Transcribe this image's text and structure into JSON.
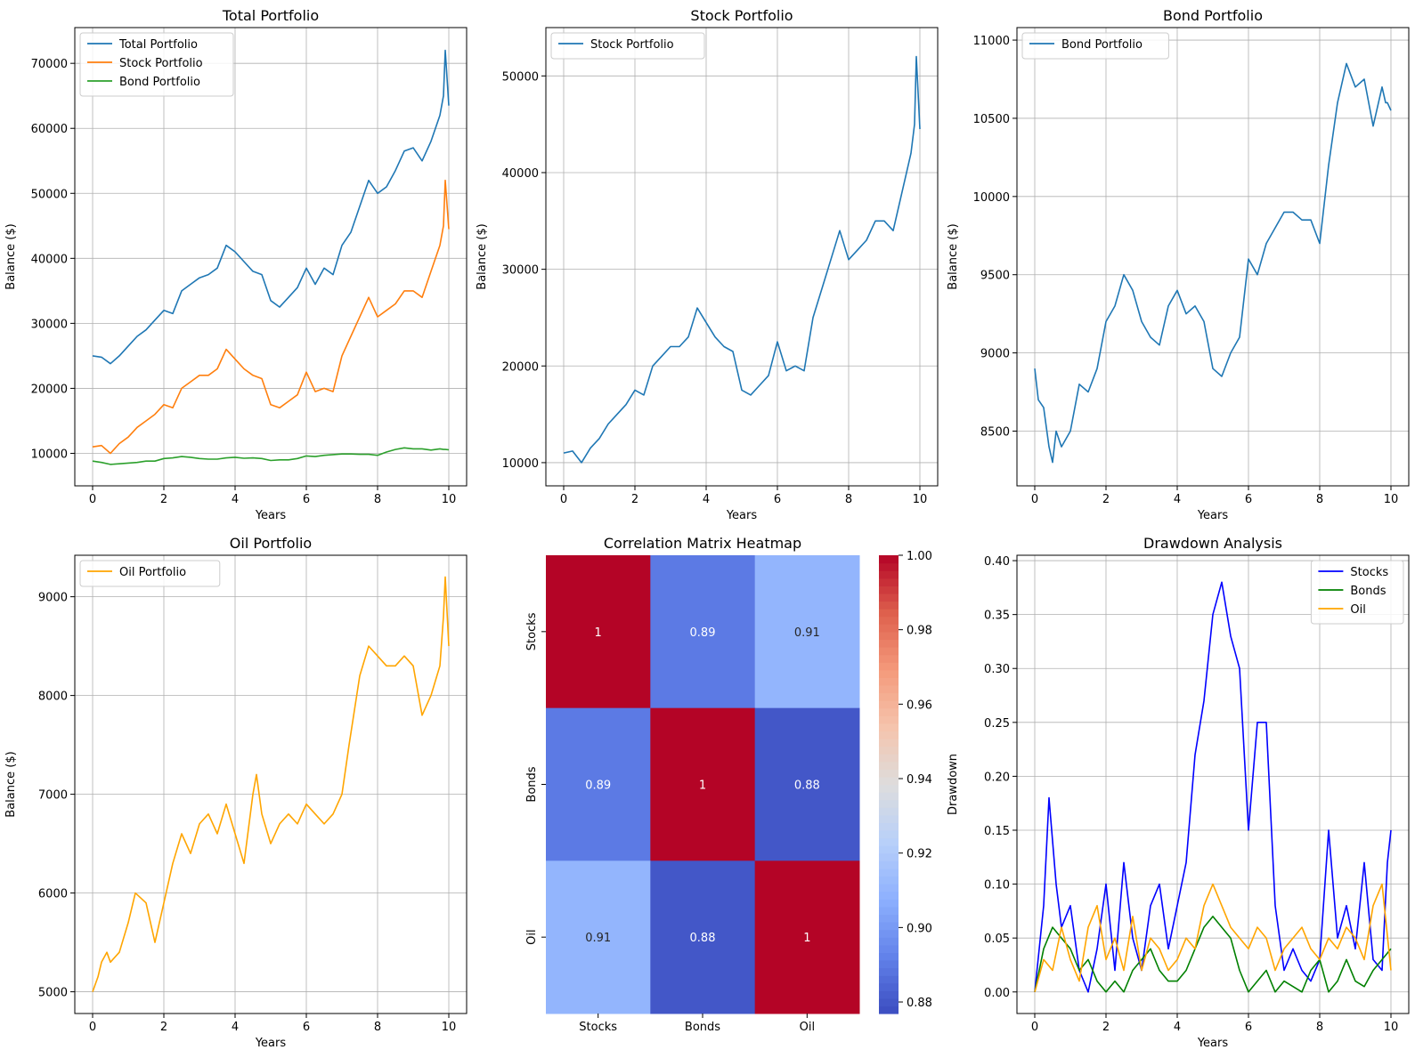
{
  "chart_data": [
    {
      "type": "line",
      "title": "Total Portfolio",
      "xlabel": "Years",
      "ylabel": "Balance ($)",
      "xlim": [
        -0.5,
        10.5
      ],
      "ylim": [
        5000,
        75500
      ],
      "xticks": [
        0,
        2,
        4,
        6,
        8,
        10
      ],
      "yticks": [
        10000,
        20000,
        30000,
        40000,
        50000,
        60000,
        70000
      ],
      "grid": true,
      "legend_position": "upper left",
      "series": [
        {
          "name": "Total Portfolio",
          "color": "#1f77b4",
          "x": [
            0,
            0.25,
            0.5,
            0.75,
            1,
            1.25,
            1.5,
            1.75,
            2,
            2.25,
            2.5,
            2.75,
            3,
            3.25,
            3.5,
            3.75,
            4,
            4.25,
            4.5,
            4.75,
            5,
            5.25,
            5.5,
            5.75,
            6,
            6.25,
            6.5,
            6.75,
            7,
            7.25,
            7.5,
            7.75,
            8,
            8.25,
            8.5,
            8.75,
            9,
            9.25,
            9.5,
            9.75,
            9.85,
            9.9,
            10
          ],
          "y": [
            25000,
            24800,
            23800,
            25000,
            26500,
            28000,
            29000,
            30500,
            32000,
            31500,
            35000,
            36000,
            37000,
            37500,
            38500,
            42000,
            41000,
            39500,
            38000,
            37500,
            33500,
            32500,
            34000,
            35500,
            38500,
            36000,
            38500,
            37500,
            42000,
            44000,
            48000,
            52000,
            50000,
            51000,
            53500,
            56500,
            57000,
            55000,
            58000,
            62000,
            65000,
            72000,
            63500
          ]
        },
        {
          "name": "Stock Portfolio",
          "color": "#ff7f0e",
          "x": [
            0,
            0.25,
            0.5,
            0.75,
            1,
            1.25,
            1.5,
            1.75,
            2,
            2.25,
            2.5,
            2.75,
            3,
            3.25,
            3.5,
            3.75,
            4,
            4.25,
            4.5,
            4.75,
            5,
            5.25,
            5.5,
            5.75,
            6,
            6.25,
            6.5,
            6.75,
            7,
            7.25,
            7.5,
            7.75,
            8,
            8.25,
            8.5,
            8.75,
            9,
            9.25,
            9.5,
            9.75,
            9.85,
            9.9,
            10
          ],
          "y": [
            11000,
            11200,
            10000,
            11500,
            12500,
            14000,
            15000,
            16000,
            17500,
            17000,
            20000,
            21000,
            22000,
            22000,
            23000,
            26000,
            24500,
            23000,
            22000,
            21500,
            17500,
            17000,
            18000,
            19000,
            22500,
            19500,
            20000,
            19500,
            25000,
            28000,
            31000,
            34000,
            31000,
            32000,
            33000,
            35000,
            35000,
            34000,
            38000,
            42000,
            45000,
            52000,
            44500
          ]
        },
        {
          "name": "Bond Portfolio",
          "color": "#2ca02c",
          "x": [
            0,
            0.25,
            0.5,
            0.75,
            1,
            1.25,
            1.5,
            1.75,
            2,
            2.25,
            2.5,
            2.75,
            3,
            3.25,
            3.5,
            3.75,
            4,
            4.25,
            4.5,
            4.75,
            5,
            5.25,
            5.5,
            5.75,
            6,
            6.25,
            6.5,
            6.75,
            7,
            7.25,
            7.5,
            7.75,
            8,
            8.25,
            8.5,
            8.75,
            9,
            9.25,
            9.5,
            9.75,
            9.85,
            9.9,
            10
          ],
          "y": [
            8800,
            8600,
            8300,
            8400,
            8500,
            8600,
            8800,
            8800,
            9200,
            9300,
            9500,
            9400,
            9200,
            9100,
            9100,
            9300,
            9400,
            9250,
            9300,
            9200,
            8900,
            9000,
            9000,
            9200,
            9600,
            9500,
            9700,
            9800,
            9900,
            9900,
            9850,
            9850,
            9700,
            10200,
            10600,
            10850,
            10700,
            10700,
            10500,
            10700,
            10600,
            10600,
            10550
          ]
        }
      ]
    },
    {
      "type": "line",
      "title": "Stock Portfolio",
      "xlabel": "Years",
      "ylabel": "Balance ($)",
      "xlim": [
        -0.5,
        10.5
      ],
      "ylim": [
        7600,
        55000
      ],
      "xticks": [
        0,
        2,
        4,
        6,
        8,
        10
      ],
      "yticks": [
        10000,
        20000,
        30000,
        40000,
        50000
      ],
      "grid": true,
      "legend_position": "upper left",
      "series": [
        {
          "name": "Stock Portfolio",
          "color": "#1f77b4",
          "x": [
            0,
            0.25,
            0.5,
            0.75,
            1,
            1.25,
            1.5,
            1.75,
            2,
            2.25,
            2.5,
            2.75,
            3,
            3.25,
            3.5,
            3.75,
            4,
            4.25,
            4.5,
            4.75,
            5,
            5.25,
            5.5,
            5.75,
            6,
            6.25,
            6.5,
            6.75,
            7,
            7.25,
            7.5,
            7.75,
            8,
            8.25,
            8.5,
            8.75,
            9,
            9.25,
            9.5,
            9.75,
            9.85,
            9.9,
            10
          ],
          "y": [
            11000,
            11200,
            10000,
            11500,
            12500,
            14000,
            15000,
            16000,
            17500,
            17000,
            20000,
            21000,
            22000,
            22000,
            23000,
            26000,
            24500,
            23000,
            22000,
            21500,
            17500,
            17000,
            18000,
            19000,
            22500,
            19500,
            20000,
            19500,
            25000,
            28000,
            31000,
            34000,
            31000,
            32000,
            33000,
            35000,
            35000,
            34000,
            38000,
            42000,
            45000,
            52000,
            44500
          ]
        }
      ]
    },
    {
      "type": "line",
      "title": "Bond Portfolio",
      "xlabel": "Years",
      "ylabel": "Balance ($)",
      "xlim": [
        -0.5,
        10.5
      ],
      "ylim": [
        8150,
        11080
      ],
      "xticks": [
        0,
        2,
        4,
        6,
        8,
        10
      ],
      "yticks": [
        8500,
        9000,
        9500,
        10000,
        10500,
        11000
      ],
      "grid": true,
      "legend_position": "upper left",
      "series": [
        {
          "name": "Bond Portfolio",
          "color": "#1f77b4",
          "x": [
            0,
            0.1,
            0.25,
            0.4,
            0.5,
            0.6,
            0.75,
            1,
            1.25,
            1.5,
            1.75,
            2,
            2.25,
            2.5,
            2.75,
            3,
            3.25,
            3.5,
            3.75,
            4,
            4.25,
            4.5,
            4.75,
            5,
            5.25,
            5.5,
            5.75,
            6,
            6.25,
            6.5,
            6.75,
            7,
            7.25,
            7.5,
            7.75,
            8,
            8.25,
            8.5,
            8.75,
            9,
            9.25,
            9.5,
            9.75,
            9.85,
            9.9,
            10
          ],
          "y": [
            8900,
            8700,
            8650,
            8400,
            8300,
            8500,
            8400,
            8500,
            8800,
            8750,
            8900,
            9200,
            9300,
            9500,
            9400,
            9200,
            9100,
            9050,
            9300,
            9400,
            9250,
            9300,
            9200,
            8900,
            8850,
            9000,
            9100,
            9600,
            9500,
            9700,
            9800,
            9900,
            9900,
            9850,
            9850,
            9700,
            10200,
            10600,
            10850,
            10700,
            10750,
            10450,
            10700,
            10600,
            10600,
            10550
          ]
        }
      ]
    },
    {
      "type": "line",
      "title": "Oil Portfolio",
      "xlabel": "Years",
      "ylabel": "Balance ($)",
      "xlim": [
        -0.5,
        10.5
      ],
      "ylim": [
        4780,
        9420
      ],
      "xticks": [
        0,
        2,
        4,
        6,
        8,
        10
      ],
      "yticks": [
        5000,
        6000,
        7000,
        8000,
        9000
      ],
      "grid": true,
      "legend_position": "upper left",
      "series": [
        {
          "name": "Oil Portfolio",
          "color": "#ffa500",
          "x": [
            0,
            0.15,
            0.25,
            0.4,
            0.5,
            0.75,
            1,
            1.2,
            1.5,
            1.75,
            2,
            2.25,
            2.5,
            2.75,
            3,
            3.25,
            3.5,
            3.75,
            4,
            4.25,
            4.5,
            4.6,
            4.75,
            5,
            5.25,
            5.5,
            5.75,
            6,
            6.25,
            6.5,
            6.75,
            7,
            7.2,
            7.5,
            7.75,
            8,
            8.25,
            8.5,
            8.75,
            9,
            9.25,
            9.5,
            9.75,
            9.85,
            9.9,
            10
          ],
          "y": [
            5000,
            5150,
            5300,
            5400,
            5300,
            5400,
            5700,
            6000,
            5900,
            5500,
            5900,
            6300,
            6600,
            6400,
            6700,
            6800,
            6600,
            6900,
            6600,
            6300,
            7000,
            7200,
            6800,
            6500,
            6700,
            6800,
            6700,
            6900,
            6800,
            6700,
            6800,
            7000,
            7500,
            8200,
            8500,
            8400,
            8300,
            8300,
            8400,
            8300,
            7800,
            8000,
            8300,
            8800,
            9200,
            8500
          ]
        }
      ]
    },
    {
      "type": "heatmap",
      "title": "Correlation Matrix Heatmap",
      "row_labels": [
        "Stocks",
        "Bonds",
        "Oil"
      ],
      "col_labels": [
        "Stocks",
        "Bonds",
        "Oil"
      ],
      "values": [
        [
          1,
          0.89,
          0.91
        ],
        [
          0.89,
          1,
          0.88
        ],
        [
          0.91,
          0.88,
          1
        ]
      ],
      "value_labels": [
        [
          "1",
          "0.89",
          "0.91"
        ],
        [
          "0.89",
          "1",
          "0.88"
        ],
        [
          "0.91",
          "0.88",
          "1"
        ]
      ],
      "colormap": "coolwarm",
      "vmin": 0.8769,
      "vmax": 1.0,
      "colorbar_ticks": [
        0.88,
        0.9,
        0.92,
        0.94,
        0.96,
        0.98,
        1.0
      ],
      "colorbar_tick_labels": [
        "0.88",
        "0.90",
        "0.92",
        "0.94",
        "0.96",
        "0.98",
        "1.00"
      ]
    },
    {
      "type": "line",
      "title": "Drawdown Analysis",
      "xlabel": "Years",
      "ylabel": "Drawdown",
      "xlim": [
        -0.5,
        10.5
      ],
      "ylim": [
        -0.02,
        0.405
      ],
      "xticks": [
        0,
        2,
        4,
        6,
        8,
        10
      ],
      "yticks": [
        0.0,
        0.05,
        0.1,
        0.15,
        0.2,
        0.25,
        0.3,
        0.35,
        0.4
      ],
      "ytick_labels": [
        "0.00",
        "0.05",
        "0.10",
        "0.15",
        "0.20",
        "0.25",
        "0.30",
        "0.35",
        "0.40"
      ],
      "grid": true,
      "legend_position": "upper right",
      "series": [
        {
          "name": "Stocks",
          "color": "#0000ff",
          "x": [
            0,
            0.25,
            0.4,
            0.6,
            0.75,
            1,
            1.25,
            1.5,
            1.75,
            2,
            2.25,
            2.5,
            2.75,
            3,
            3.25,
            3.5,
            3.75,
            4,
            4.25,
            4.5,
            4.75,
            5,
            5.25,
            5.5,
            5.75,
            6,
            6.25,
            6.5,
            6.75,
            7,
            7.25,
            7.5,
            7.75,
            8,
            8.25,
            8.5,
            8.75,
            9,
            9.25,
            9.5,
            9.75,
            9.9,
            10
          ],
          "y": [
            0,
            0.08,
            0.18,
            0.1,
            0.06,
            0.08,
            0.02,
            0,
            0.04,
            0.1,
            0.02,
            0.12,
            0.05,
            0.02,
            0.08,
            0.1,
            0.04,
            0.08,
            0.12,
            0.22,
            0.27,
            0.35,
            0.38,
            0.33,
            0.3,
            0.15,
            0.25,
            0.25,
            0.08,
            0.02,
            0.04,
            0.02,
            0.01,
            0.03,
            0.15,
            0.05,
            0.08,
            0.04,
            0.12,
            0.03,
            0.02,
            0.12,
            0.15
          ]
        },
        {
          "name": "Bonds",
          "color": "#008000",
          "x": [
            0,
            0.25,
            0.5,
            0.75,
            1,
            1.25,
            1.5,
            1.75,
            2,
            2.25,
            2.5,
            2.75,
            3,
            3.25,
            3.5,
            3.75,
            4,
            4.25,
            4.5,
            4.75,
            5,
            5.25,
            5.5,
            5.75,
            6,
            6.25,
            6.5,
            6.75,
            7,
            7.25,
            7.5,
            7.75,
            8,
            8.25,
            8.5,
            8.75,
            9,
            9.25,
            9.5,
            9.75,
            10
          ],
          "y": [
            0,
            0.04,
            0.06,
            0.05,
            0.04,
            0.02,
            0.03,
            0.01,
            0,
            0.01,
            0,
            0.02,
            0.03,
            0.04,
            0.02,
            0.01,
            0.01,
            0.02,
            0.04,
            0.06,
            0.07,
            0.06,
            0.05,
            0.02,
            0,
            0.01,
            0.02,
            0,
            0.01,
            0.005,
            0,
            0.02,
            0.03,
            0,
            0.01,
            0.03,
            0.01,
            0.005,
            0.02,
            0.03,
            0.04
          ]
        },
        {
          "name": "Oil",
          "color": "#ffa500",
          "x": [
            0,
            0.25,
            0.5,
            0.75,
            1,
            1.25,
            1.5,
            1.75,
            2,
            2.25,
            2.5,
            2.75,
            3,
            3.25,
            3.5,
            3.75,
            4,
            4.25,
            4.5,
            4.75,
            5,
            5.25,
            5.5,
            5.75,
            6,
            6.25,
            6.5,
            6.75,
            7,
            7.25,
            7.5,
            7.75,
            8,
            8.25,
            8.5,
            8.75,
            9,
            9.25,
            9.5,
            9.75,
            10
          ],
          "y": [
            0,
            0.03,
            0.02,
            0.06,
            0.03,
            0.01,
            0.06,
            0.08,
            0.03,
            0.05,
            0.02,
            0.07,
            0.02,
            0.05,
            0.04,
            0.02,
            0.03,
            0.05,
            0.04,
            0.08,
            0.1,
            0.08,
            0.06,
            0.05,
            0.04,
            0.06,
            0.05,
            0.02,
            0.04,
            0.05,
            0.06,
            0.04,
            0.03,
            0.05,
            0.04,
            0.06,
            0.05,
            0.03,
            0.08,
            0.1,
            0.02
          ]
        }
      ]
    }
  ]
}
